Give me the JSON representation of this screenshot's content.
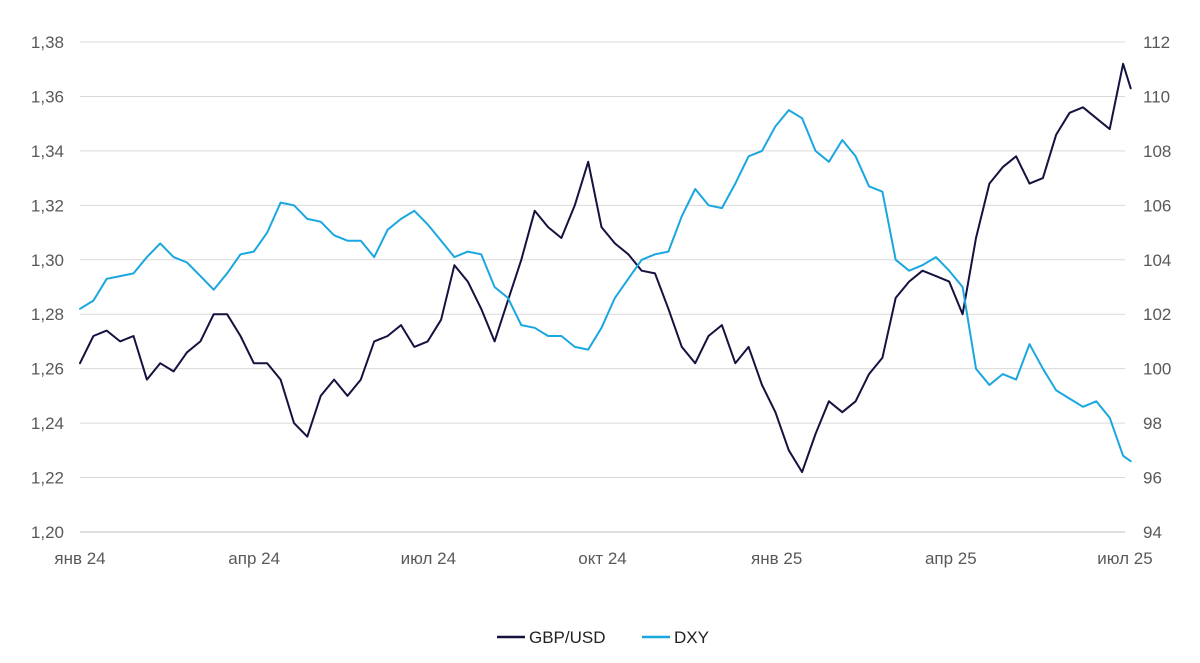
{
  "chart_data": {
    "type": "line",
    "title": "",
    "xlabel": "",
    "ylabel": "",
    "grid": true,
    "legend_position": "bottom-center",
    "x_ticks": [
      "янв 24",
      "апр 24",
      "июл 24",
      "окт 24",
      "янв 25",
      "апр 25",
      "июл 25"
    ],
    "y_left": {
      "min": 1.2,
      "max": 1.38,
      "ticks": [
        "1,20",
        "1,22",
        "1,24",
        "1,26",
        "1,28",
        "1,30",
        "1,32",
        "1,34",
        "1,36",
        "1,38"
      ]
    },
    "y_right": {
      "min": 94,
      "max": 112,
      "ticks": [
        "94",
        "96",
        "98",
        "100",
        "102",
        "104",
        "106",
        "108",
        "110",
        "112"
      ]
    },
    "series": [
      {
        "name": "GBP/USD",
        "axis": "left",
        "color": "#14123f",
        "points": [
          [
            "2024-01-01",
            1.262
          ],
          [
            "2024-01-08",
            1.272
          ],
          [
            "2024-01-15",
            1.274
          ],
          [
            "2024-01-22",
            1.27
          ],
          [
            "2024-01-29",
            1.272
          ],
          [
            "2024-02-05",
            1.256
          ],
          [
            "2024-02-12",
            1.262
          ],
          [
            "2024-02-19",
            1.259
          ],
          [
            "2024-02-26",
            1.266
          ],
          [
            "2024-03-04",
            1.27
          ],
          [
            "2024-03-11",
            1.28
          ],
          [
            "2024-03-18",
            1.28
          ],
          [
            "2024-03-25",
            1.272
          ],
          [
            "2024-04-01",
            1.262
          ],
          [
            "2024-04-08",
            1.262
          ],
          [
            "2024-04-15",
            1.256
          ],
          [
            "2024-04-22",
            1.24
          ],
          [
            "2024-04-29",
            1.235
          ],
          [
            "2024-05-06",
            1.25
          ],
          [
            "2024-05-13",
            1.256
          ],
          [
            "2024-05-20",
            1.25
          ],
          [
            "2024-05-27",
            1.256
          ],
          [
            "2024-06-03",
            1.27
          ],
          [
            "2024-06-10",
            1.272
          ],
          [
            "2024-06-17",
            1.276
          ],
          [
            "2024-06-24",
            1.268
          ],
          [
            "2024-07-01",
            1.27
          ],
          [
            "2024-07-08",
            1.278
          ],
          [
            "2024-07-15",
            1.298
          ],
          [
            "2024-07-22",
            1.292
          ],
          [
            "2024-07-29",
            1.282
          ],
          [
            "2024-08-05",
            1.27
          ],
          [
            "2024-08-12",
            1.285
          ],
          [
            "2024-08-19",
            1.3
          ],
          [
            "2024-08-26",
            1.318
          ],
          [
            "2024-09-02",
            1.312
          ],
          [
            "2024-09-09",
            1.308
          ],
          [
            "2024-09-16",
            1.32
          ],
          [
            "2024-09-23",
            1.336
          ],
          [
            "2024-09-30",
            1.312
          ],
          [
            "2024-10-07",
            1.306
          ],
          [
            "2024-10-14",
            1.302
          ],
          [
            "2024-10-21",
            1.296
          ],
          [
            "2024-10-28",
            1.295
          ],
          [
            "2024-11-04",
            1.282
          ],
          [
            "2024-11-11",
            1.268
          ],
          [
            "2024-11-18",
            1.262
          ],
          [
            "2024-11-25",
            1.272
          ],
          [
            "2024-12-02",
            1.276
          ],
          [
            "2024-12-09",
            1.262
          ],
          [
            "2024-12-16",
            1.268
          ],
          [
            "2024-12-23",
            1.254
          ],
          [
            "2024-12-30",
            1.244
          ],
          [
            "2025-01-06",
            1.23
          ],
          [
            "2025-01-13",
            1.222
          ],
          [
            "2025-01-20",
            1.236
          ],
          [
            "2025-01-27",
            1.248
          ],
          [
            "2025-02-03",
            1.244
          ],
          [
            "2025-02-10",
            1.248
          ],
          [
            "2025-02-17",
            1.258
          ],
          [
            "2025-02-24",
            1.264
          ],
          [
            "2025-03-03",
            1.286
          ],
          [
            "2025-03-10",
            1.292
          ],
          [
            "2025-03-17",
            1.296
          ],
          [
            "2025-03-24",
            1.294
          ],
          [
            "2025-03-31",
            1.292
          ],
          [
            "2025-04-07",
            1.28
          ],
          [
            "2025-04-14",
            1.308
          ],
          [
            "2025-04-21",
            1.328
          ],
          [
            "2025-04-28",
            1.334
          ],
          [
            "2025-05-05",
            1.338
          ],
          [
            "2025-05-12",
            1.328
          ],
          [
            "2025-05-19",
            1.33
          ],
          [
            "2025-05-26",
            1.346
          ],
          [
            "2025-06-02",
            1.354
          ],
          [
            "2025-06-09",
            1.356
          ],
          [
            "2025-06-16",
            1.352
          ],
          [
            "2025-06-23",
            1.348
          ],
          [
            "2025-06-30",
            1.372
          ],
          [
            "2025-07-04",
            1.363
          ]
        ]
      },
      {
        "name": "DXY",
        "axis": "right",
        "color": "#1aa7e0",
        "points": [
          [
            "2024-01-01",
            102.2
          ],
          [
            "2024-01-08",
            102.5
          ],
          [
            "2024-01-15",
            103.3
          ],
          [
            "2024-01-22",
            103.4
          ],
          [
            "2024-01-29",
            103.5
          ],
          [
            "2024-02-05",
            104.1
          ],
          [
            "2024-02-12",
            104.6
          ],
          [
            "2024-02-19",
            104.1
          ],
          [
            "2024-02-26",
            103.9
          ],
          [
            "2024-03-04",
            103.4
          ],
          [
            "2024-03-11",
            102.9
          ],
          [
            "2024-03-18",
            103.5
          ],
          [
            "2024-03-25",
            104.2
          ],
          [
            "2024-04-01",
            104.3
          ],
          [
            "2024-04-08",
            105.0
          ],
          [
            "2024-04-15",
            106.1
          ],
          [
            "2024-04-22",
            106.0
          ],
          [
            "2024-04-29",
            105.5
          ],
          [
            "2024-05-06",
            105.4
          ],
          [
            "2024-05-13",
            104.9
          ],
          [
            "2024-05-20",
            104.7
          ],
          [
            "2024-05-27",
            104.7
          ],
          [
            "2024-06-03",
            104.1
          ],
          [
            "2024-06-10",
            105.1
          ],
          [
            "2024-06-17",
            105.5
          ],
          [
            "2024-06-24",
            105.8
          ],
          [
            "2024-07-01",
            105.3
          ],
          [
            "2024-07-08",
            104.7
          ],
          [
            "2024-07-15",
            104.1
          ],
          [
            "2024-07-22",
            104.3
          ],
          [
            "2024-07-29",
            104.2
          ],
          [
            "2024-08-05",
            103.0
          ],
          [
            "2024-08-12",
            102.6
          ],
          [
            "2024-08-19",
            101.6
          ],
          [
            "2024-08-26",
            101.5
          ],
          [
            "2024-09-02",
            101.2
          ],
          [
            "2024-09-09",
            101.2
          ],
          [
            "2024-09-16",
            100.8
          ],
          [
            "2024-09-23",
            100.7
          ],
          [
            "2024-09-30",
            101.5
          ],
          [
            "2024-10-07",
            102.6
          ],
          [
            "2024-10-14",
            103.3
          ],
          [
            "2024-10-21",
            104.0
          ],
          [
            "2024-10-28",
            104.2
          ],
          [
            "2024-11-04",
            104.3
          ],
          [
            "2024-11-11",
            105.6
          ],
          [
            "2024-11-18",
            106.6
          ],
          [
            "2024-11-25",
            106.0
          ],
          [
            "2024-12-02",
            105.9
          ],
          [
            "2024-12-09",
            106.8
          ],
          [
            "2024-12-16",
            107.8
          ],
          [
            "2024-12-23",
            108.0
          ],
          [
            "2024-12-30",
            108.9
          ],
          [
            "2025-01-06",
            109.5
          ],
          [
            "2025-01-13",
            109.2
          ],
          [
            "2025-01-20",
            108.0
          ],
          [
            "2025-01-27",
            107.6
          ],
          [
            "2025-02-03",
            108.4
          ],
          [
            "2025-02-10",
            107.8
          ],
          [
            "2025-02-17",
            106.7
          ],
          [
            "2025-02-24",
            106.5
          ],
          [
            "2025-03-03",
            104.0
          ],
          [
            "2025-03-10",
            103.6
          ],
          [
            "2025-03-17",
            103.8
          ],
          [
            "2025-03-24",
            104.1
          ],
          [
            "2025-03-31",
            103.6
          ],
          [
            "2025-04-07",
            103.0
          ],
          [
            "2025-04-14",
            100.0
          ],
          [
            "2025-04-21",
            99.4
          ],
          [
            "2025-04-28",
            99.8
          ],
          [
            "2025-05-05",
            99.6
          ],
          [
            "2025-05-12",
            100.9
          ],
          [
            "2025-05-19",
            100.0
          ],
          [
            "2025-05-26",
            99.2
          ],
          [
            "2025-06-02",
            98.9
          ],
          [
            "2025-06-09",
            98.6
          ],
          [
            "2025-06-16",
            98.8
          ],
          [
            "2025-06-23",
            98.2
          ],
          [
            "2025-06-30",
            96.8
          ],
          [
            "2025-07-04",
            96.6
          ]
        ]
      }
    ]
  }
}
